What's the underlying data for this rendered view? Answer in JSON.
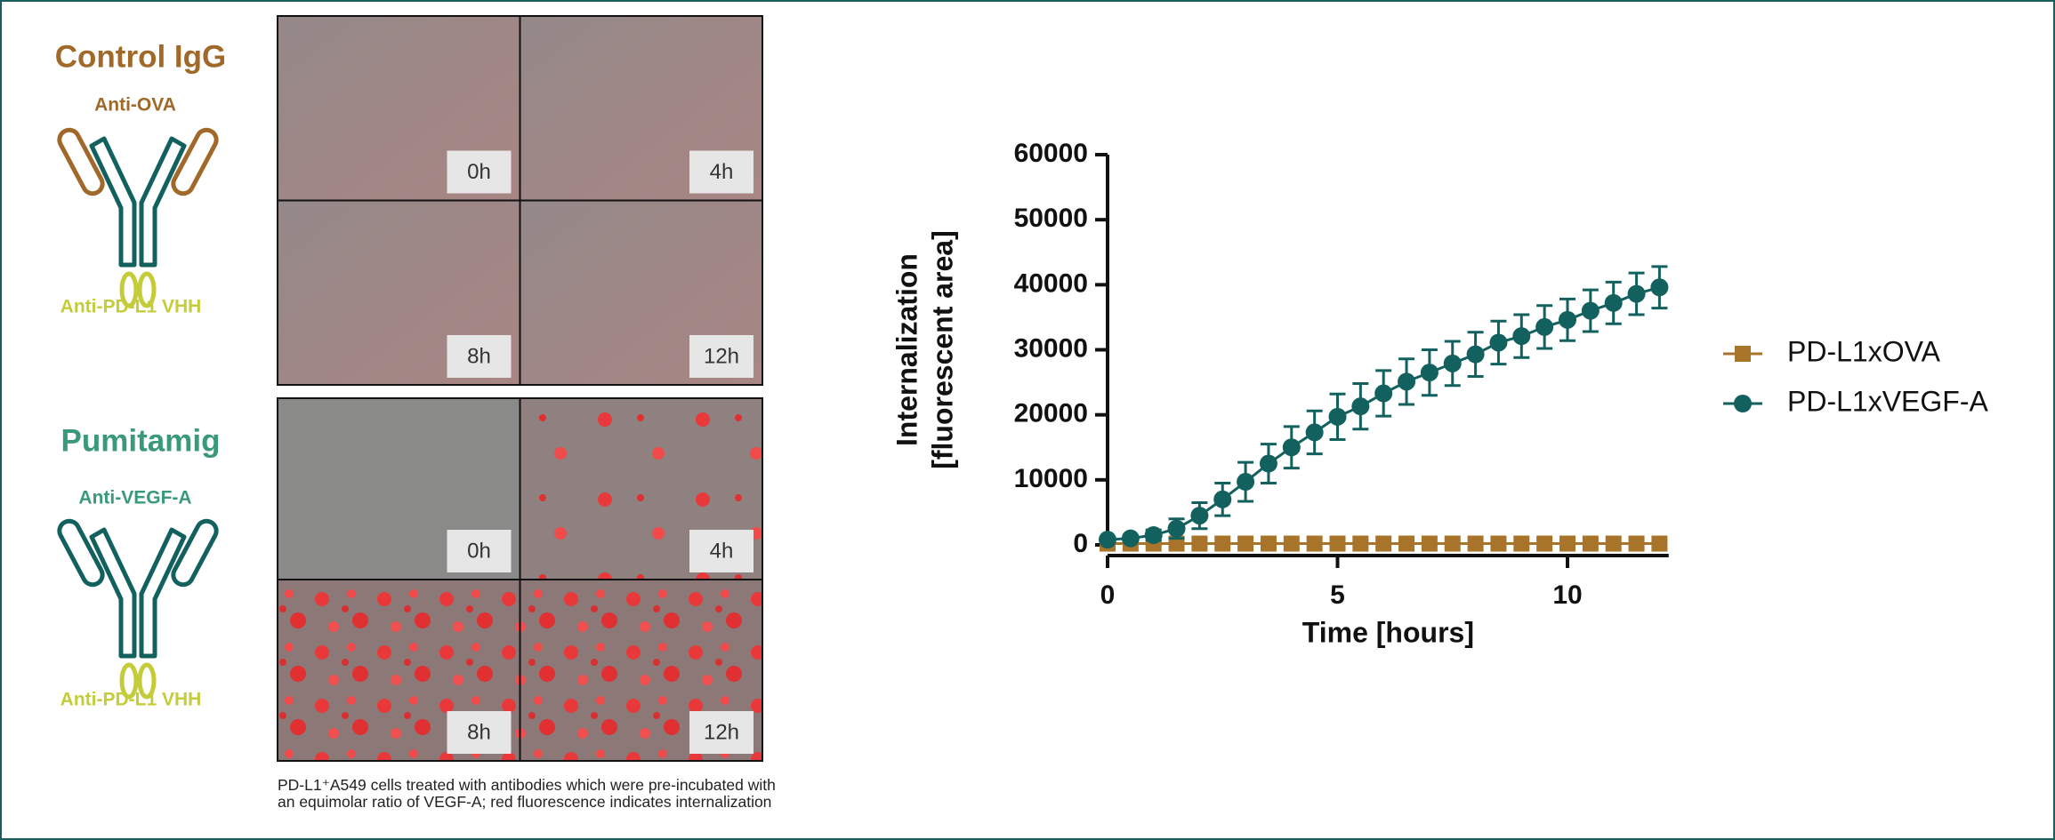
{
  "panels": {
    "control": {
      "title": "Control IgG",
      "arm": "Anti-OVA",
      "vhh": "Anti-PD-L1 VHH"
    },
    "pumitamig": {
      "title": "Pumitamig",
      "arm": "Anti-VEGF-A",
      "vhh": "Anti-PD-L1 VHH"
    }
  },
  "micrographs": {
    "control": [
      "0h",
      "4h",
      "8h",
      "12h"
    ],
    "pumitamig": [
      "0h",
      "4h",
      "8h",
      "12h"
    ],
    "caption": "PD-L1⁺A549 cells treated with antibodies which were pre-incubated with an equimolar ratio of VEGF-A; red fluorescence indicates internalization"
  },
  "chart_data": {
    "type": "line",
    "xlabel": "Time [hours]",
    "ylabel": [
      "Internalization",
      "[fluorescent area]"
    ],
    "x": [
      0,
      0.5,
      1,
      1.5,
      2,
      2.5,
      3,
      3.5,
      4,
      4.5,
      5,
      5.5,
      6,
      6.5,
      7,
      7.5,
      8,
      8.5,
      9,
      9.5,
      10,
      10.5,
      11,
      11.5,
      12
    ],
    "series": [
      {
        "name": "PD-L1xOVA",
        "color": "#a8742a",
        "marker": "square",
        "values": [
          200,
          200,
          200,
          200,
          200,
          200,
          200,
          200,
          200,
          200,
          200,
          200,
          200,
          200,
          200,
          200,
          200,
          200,
          200,
          200,
          200,
          200,
          200,
          200,
          200
        ]
      },
      {
        "name": "PD-L1xVEGF-A",
        "color": "#13615f",
        "marker": "circle",
        "values": [
          800,
          1000,
          1500,
          2500,
          4500,
          7000,
          9700,
          12500,
          15000,
          17300,
          19700,
          21300,
          23300,
          25100,
          26500,
          27900,
          29300,
          31100,
          32100,
          33500,
          34600,
          36000,
          37200,
          38600,
          39600
        ],
        "errors": [
          300,
          400,
          800,
          1500,
          2000,
          2500,
          3000,
          3000,
          3200,
          3300,
          3500,
          3500,
          3500,
          3500,
          3500,
          3400,
          3400,
          3300,
          3300,
          3300,
          3200,
          3200,
          3200,
          3200,
          3200
        ]
      }
    ],
    "xlim": [
      0,
      12.2
    ],
    "xticks": [
      0,
      5,
      10
    ],
    "ylim": [
      0,
      60000
    ],
    "yticks": [
      0,
      10000,
      20000,
      30000,
      40000,
      50000,
      60000
    ],
    "grid": false,
    "legend": "right"
  }
}
